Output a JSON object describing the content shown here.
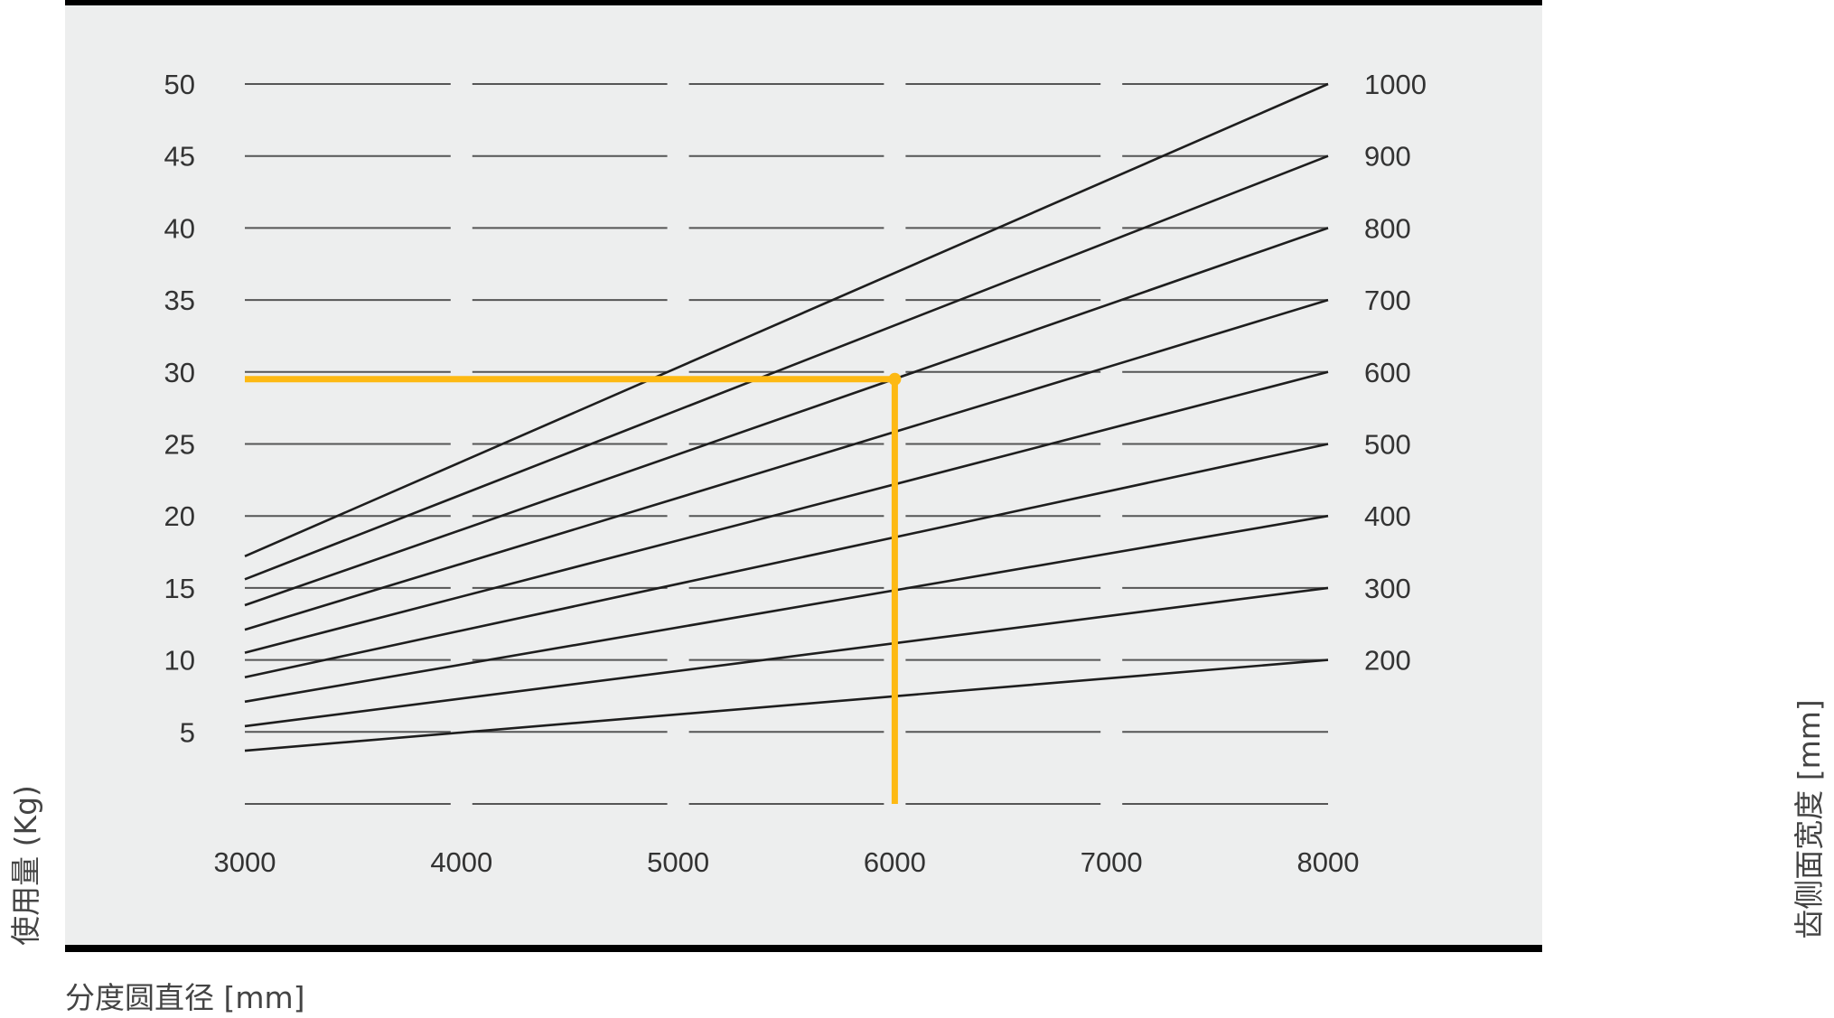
{
  "chart_data": {
    "type": "line",
    "xlabel": "分度圆直径 [mm]",
    "ylabel": "使用量 (Kg)",
    "y2label": "齿侧面宽度 [mm]",
    "x_ticks": [
      "3000",
      "4000",
      "5000",
      "6000",
      "7000",
      "8000"
    ],
    "y_ticks": [
      "5",
      "10",
      "15",
      "20",
      "25",
      "30",
      "35",
      "40",
      "45",
      "50"
    ],
    "y2_ticks": [
      "200",
      "300",
      "400",
      "500",
      "600",
      "700",
      "800",
      "900",
      "1000"
    ],
    "xlim": [
      3000,
      8000
    ],
    "ylim": [
      0,
      50
    ],
    "grid": "horizontal dashed",
    "series": [
      {
        "name": "200",
        "x": [
          3000,
          8000
        ],
        "y": [
          3.7,
          10
        ]
      },
      {
        "name": "300",
        "x": [
          3000,
          8000
        ],
        "y": [
          5.4,
          15
        ]
      },
      {
        "name": "400",
        "x": [
          3000,
          8000
        ],
        "y": [
          7.1,
          20
        ]
      },
      {
        "name": "500",
        "x": [
          3000,
          8000
        ],
        "y": [
          8.8,
          25
        ]
      },
      {
        "name": "600",
        "x": [
          3000,
          8000
        ],
        "y": [
          10.5,
          30
        ]
      },
      {
        "name": "700",
        "x": [
          3000,
          8000
        ],
        "y": [
          12.1,
          35
        ]
      },
      {
        "name": "800",
        "x": [
          3000,
          8000
        ],
        "y": [
          13.8,
          40
        ]
      },
      {
        "name": "900",
        "x": [
          3000,
          8000
        ],
        "y": [
          15.6,
          45
        ]
      },
      {
        "name": "1000",
        "x": [
          3000,
          8000
        ],
        "y": [
          17.2,
          50
        ]
      }
    ],
    "highlight": {
      "x": 6000,
      "y": 29.5,
      "color": "#FDB913"
    },
    "colors": {
      "panel": "#EDEEEE",
      "line": "#1E1E1E",
      "grid": "#555555",
      "frame": "#000000"
    }
  }
}
